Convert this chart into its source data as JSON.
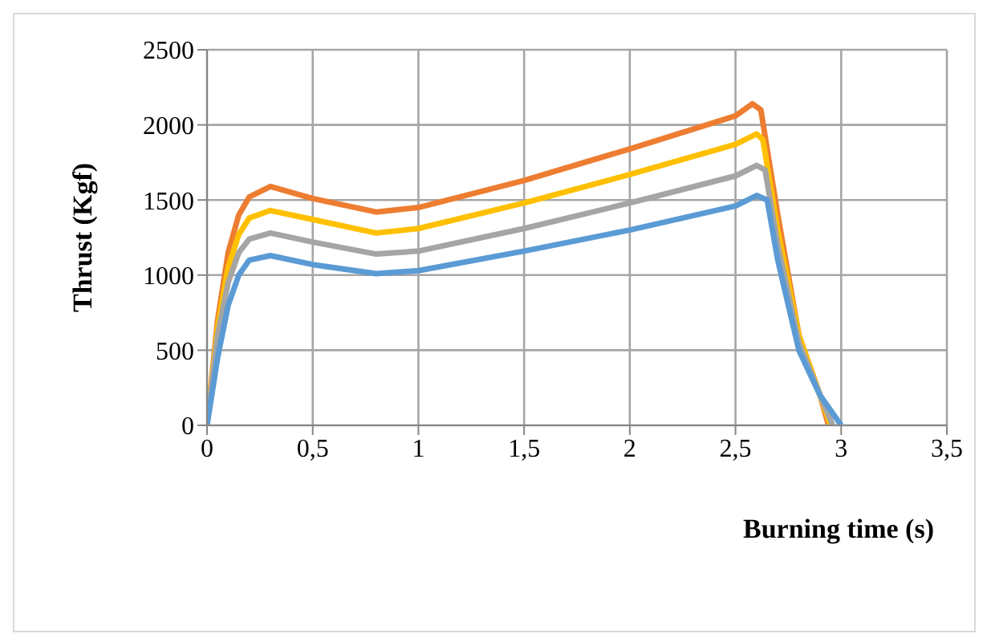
{
  "chart_data": {
    "type": "line",
    "xlabel": "Burning time (s)",
    "ylabel": "Thrust (Kgf)",
    "xlim": [
      0,
      3.5
    ],
    "xticks": [
      0,
      {
        "value": 0.5,
        "label": "0,5"
      },
      1,
      {
        "value": 1.5,
        "label": "1,5"
      },
      2,
      {
        "value": 2.5,
        "label": "2,5"
      },
      3,
      {
        "value": 3.5,
        "label": "3,5"
      }
    ],
    "ylim": [
      0,
      2500
    ],
    "yticks": [
      0,
      500,
      1000,
      1500,
      2000,
      2500
    ],
    "grid": true,
    "marker": "none",
    "line_style": "solid",
    "series": [
      {
        "color": "#ed7d31",
        "x": [
          0,
          0.05,
          0.1,
          0.15,
          0.2,
          0.3,
          0.5,
          0.8,
          1,
          1.5,
          2,
          2.5,
          2.58,
          2.62,
          2.7,
          2.8,
          2.9,
          2.94
        ],
        "values": [
          0,
          700,
          1150,
          1400,
          1520,
          1590,
          1510,
          1420,
          1450,
          1630,
          1840,
          2060,
          2140,
          2100,
          1400,
          600,
          200,
          0
        ]
      },
      {
        "color": "#ffc000",
        "x": [
          0,
          0.05,
          0.1,
          0.15,
          0.2,
          0.3,
          0.5,
          0.8,
          1,
          1.5,
          2,
          2.5,
          2.6,
          2.63,
          2.7,
          2.8,
          2.9,
          2.95
        ],
        "values": [
          0,
          650,
          1050,
          1270,
          1380,
          1430,
          1370,
          1280,
          1310,
          1480,
          1670,
          1870,
          1940,
          1900,
          1300,
          600,
          200,
          0
        ]
      },
      {
        "color": "#a5a5a5",
        "x": [
          0,
          0.05,
          0.1,
          0.15,
          0.2,
          0.3,
          0.5,
          0.8,
          1,
          1.5,
          2,
          2.5,
          2.6,
          2.64,
          2.7,
          2.8,
          2.9,
          2.96
        ],
        "values": [
          0,
          600,
          950,
          1150,
          1240,
          1280,
          1220,
          1140,
          1160,
          1310,
          1480,
          1660,
          1730,
          1700,
          1200,
          550,
          200,
          0
        ]
      },
      {
        "color": "#5b9bd5",
        "x": [
          0,
          0.05,
          0.1,
          0.15,
          0.2,
          0.3,
          0.5,
          0.8,
          1,
          1.5,
          2,
          2.5,
          2.6,
          2.65,
          2.7,
          2.8,
          2.9,
          3
        ],
        "values": [
          0,
          450,
          800,
          1000,
          1100,
          1130,
          1070,
          1010,
          1030,
          1160,
          1300,
          1460,
          1530,
          1500,
          1100,
          500,
          200,
          0
        ]
      }
    ]
  }
}
